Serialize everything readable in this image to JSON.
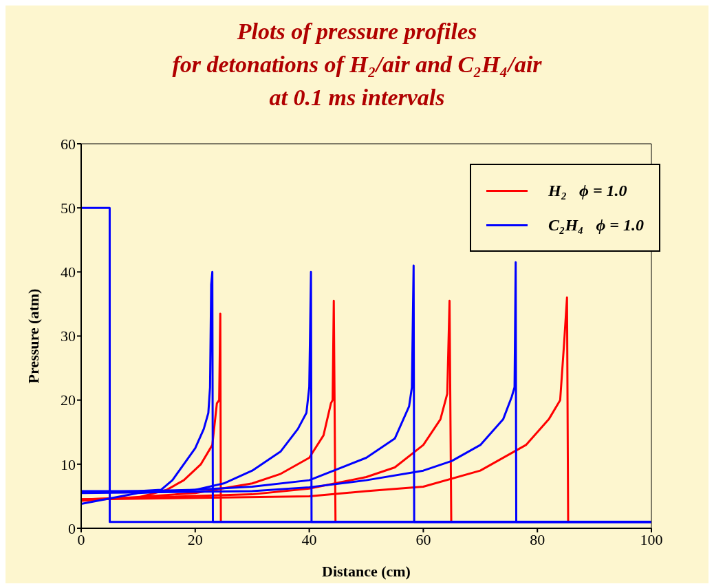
{
  "chart_data": {
    "type": "line",
    "title": "Plots of pressure profiles\nfor detonations of H₂/air and C₂H₄/air\nat 0.1 ms intervals",
    "xlabel": "Distance (cm)",
    "ylabel": "Pressure (atm)",
    "xlim": [
      0,
      100
    ],
    "xticks": [
      0,
      20,
      40,
      60,
      80,
      100
    ],
    "ylim": [
      0,
      60
    ],
    "yticks": [
      0,
      10,
      20,
      30,
      40,
      50,
      60
    ],
    "grid": false,
    "legend": "top right",
    "marker": "none",
    "line_style": "solid",
    "series": [
      {
        "name": "H₂   ϕ = 1.0",
        "color": "#ff0000",
        "x": [
          0,
          10,
          15,
          18,
          21,
          23,
          23.8,
          24.2,
          24.4,
          24.5
        ],
        "values": [
          4.5,
          4.8,
          6,
          7.5,
          10,
          13,
          19.5,
          20,
          33.5,
          1
        ]
      },
      {
        "color": "#ff0000",
        "x": [
          0,
          20,
          30,
          35,
          40,
          42.5,
          43.8,
          44.1,
          44.3,
          44.6
        ],
        "values": [
          4.3,
          5.5,
          7,
          8.5,
          11,
          14.5,
          19.5,
          20,
          35.5,
          1
        ]
      },
      {
        "color": "#ff0000",
        "x": [
          0,
          30,
          40,
          50,
          55,
          60,
          63,
          64.2,
          64.6,
          64.9
        ],
        "values": [
          4.5,
          5.3,
          6.2,
          8,
          9.5,
          13,
          17,
          21,
          35.5,
          1
        ]
      },
      {
        "color": "#ff0000",
        "x": [
          0,
          40,
          50,
          60,
          70,
          78,
          82,
          84,
          84.7,
          85.2,
          85.4
        ],
        "values": [
          4.5,
          5,
          5.8,
          6.5,
          9,
          13,
          17,
          20,
          29,
          36,
          1
        ]
      },
      {
        "name": "C₂H₄   ϕ = 1.0",
        "color": "#0000ff",
        "x": [
          0,
          5,
          5.01,
          100
        ],
        "values": [
          50,
          50,
          1,
          1
        ]
      },
      {
        "color": "#0000ff",
        "x": [
          0,
          10,
          14,
          16,
          18,
          20,
          21.5,
          22.3,
          22.6,
          22.8,
          23,
          23.1,
          100
        ],
        "values": [
          5.8,
          5.8,
          6,
          7.5,
          10,
          12.5,
          15.5,
          18,
          22,
          38,
          40,
          1,
          1
        ]
      },
      {
        "color": "#0000ff",
        "x": [
          0,
          10,
          20,
          25,
          30,
          35,
          38,
          39.5,
          40,
          40.3,
          40.4,
          100
        ],
        "values": [
          3.8,
          5.5,
          6,
          7,
          9,
          12,
          15.5,
          18,
          22,
          40,
          1,
          1
        ]
      },
      {
        "color": "#0000ff",
        "x": [
          0,
          20,
          30,
          40,
          50,
          55,
          57.5,
          58,
          58.3,
          58.4,
          100
        ],
        "values": [
          5.6,
          6,
          6.5,
          7.5,
          11,
          14,
          19,
          22,
          41,
          1,
          1
        ]
      },
      {
        "color": "#0000ff",
        "x": [
          0,
          30,
          40,
          50,
          60,
          65,
          70,
          74,
          75.5,
          76,
          76.2,
          76.3,
          100
        ],
        "values": [
          5.5,
          5.8,
          6.4,
          7.5,
          9,
          10.5,
          13,
          17,
          20.5,
          22,
          41.5,
          1,
          1
        ]
      }
    ]
  }
}
